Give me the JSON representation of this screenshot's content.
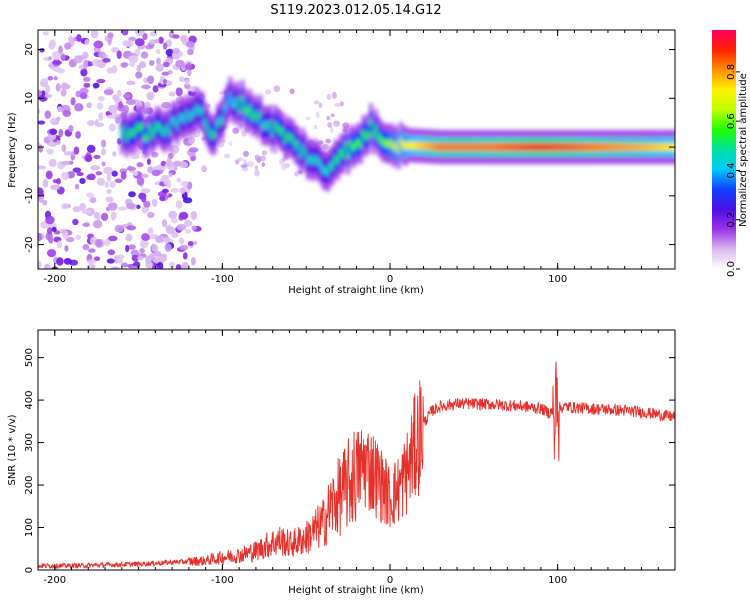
{
  "title": "S119.2023.012.05.14.G12",
  "chart_data": [
    {
      "type": "heatmap",
      "xlabel": "Height of straight line (km)",
      "ylabel": "Frequency (Hz)",
      "xlim": [
        -210,
        170
      ],
      "ylim": [
        -25,
        24
      ],
      "xticks": [
        -200,
        -100,
        0,
        100
      ],
      "yticks": [
        -20,
        -10,
        0,
        10,
        20
      ],
      "colorbar": {
        "label": "Normalized spectral amplitude",
        "range": [
          0,
          0.97
        ],
        "ticks": [
          0.0,
          0.2,
          0.4,
          0.6,
          0.8
        ],
        "colormap": [
          "#ffffff",
          "#d8b8f0",
          "#9a32e6",
          "#4b0fe6",
          "#1040ff",
          "#00c8ff",
          "#00e0a0",
          "#20ff00",
          "#c0ff00",
          "#fff000",
          "#ff9000",
          "#ff2000",
          "#ff0060"
        ]
      },
      "ridge": [
        {
          "x": -160,
          "f": 3,
          "a": 0.5
        },
        {
          "x": -145,
          "f": 3,
          "a": 0.55
        },
        {
          "x": -130,
          "f": 4,
          "a": 0.45
        },
        {
          "x": -115,
          "f": 8.5,
          "a": 0.45
        },
        {
          "x": -105,
          "f": 2,
          "a": 0.5
        },
        {
          "x": -95,
          "f": 10,
          "a": 0.4
        },
        {
          "x": -85,
          "f": 8,
          "a": 0.6
        },
        {
          "x": -75,
          "f": 5,
          "a": 0.45
        },
        {
          "x": -65,
          "f": 3,
          "a": 0.55
        },
        {
          "x": -55,
          "f": 0,
          "a": 0.5
        },
        {
          "x": -45,
          "f": -3,
          "a": 0.45
        },
        {
          "x": -38,
          "f": -5,
          "a": 0.45
        },
        {
          "x": -30,
          "f": -1,
          "a": 0.55
        },
        {
          "x": -20,
          "f": 0,
          "a": 0.6
        },
        {
          "x": -12,
          "f": 4,
          "a": 0.55
        },
        {
          "x": -5,
          "f": 2,
          "a": 0.6
        },
        {
          "x": 5,
          "f": 0.5,
          "a": 0.7
        },
        {
          "x": 30,
          "f": 0,
          "a": 0.85
        },
        {
          "x": 60,
          "f": 0,
          "a": 0.85
        },
        {
          "x": 90,
          "f": 0,
          "a": 0.9
        },
        {
          "x": 120,
          "f": 0,
          "a": 0.85
        },
        {
          "x": 150,
          "f": 0,
          "a": 0.8
        },
        {
          "x": 170,
          "f": 0,
          "a": 0.75
        }
      ]
    },
    {
      "type": "line",
      "xlabel": "Height of straight line (km)",
      "ylabel": "SNR (10 * v/v)",
      "xlim": [
        -210,
        170
      ],
      "ylim": [
        0,
        565
      ],
      "xticks": [
        -200,
        -100,
        0,
        100
      ],
      "yticks": [
        0,
        100,
        200,
        300,
        400,
        500
      ],
      "color": "#e8302a",
      "series": [
        {
          "x": [
            -210,
            -190,
            -170,
            -150,
            -130,
            -110,
            -100,
            -90,
            -80,
            -70,
            -65,
            -60,
            -50,
            -40,
            -35,
            -30,
            -25,
            -20,
            -15,
            -10,
            -5,
            0,
            5,
            10,
            15,
            20,
            25,
            30,
            40,
            60,
            80,
            90,
            95,
            100,
            105,
            110,
            130,
            150,
            170
          ],
          "y": [
            10,
            10,
            12,
            14,
            18,
            22,
            30,
            35,
            45,
            65,
            70,
            60,
            75,
            110,
            150,
            175,
            200,
            230,
            250,
            230,
            200,
            170,
            190,
            230,
            290,
            345,
            375,
            385,
            392,
            390,
            385,
            380,
            370,
            380,
            385,
            382,
            378,
            372,
            360
          ]
        }
      ]
    }
  ]
}
